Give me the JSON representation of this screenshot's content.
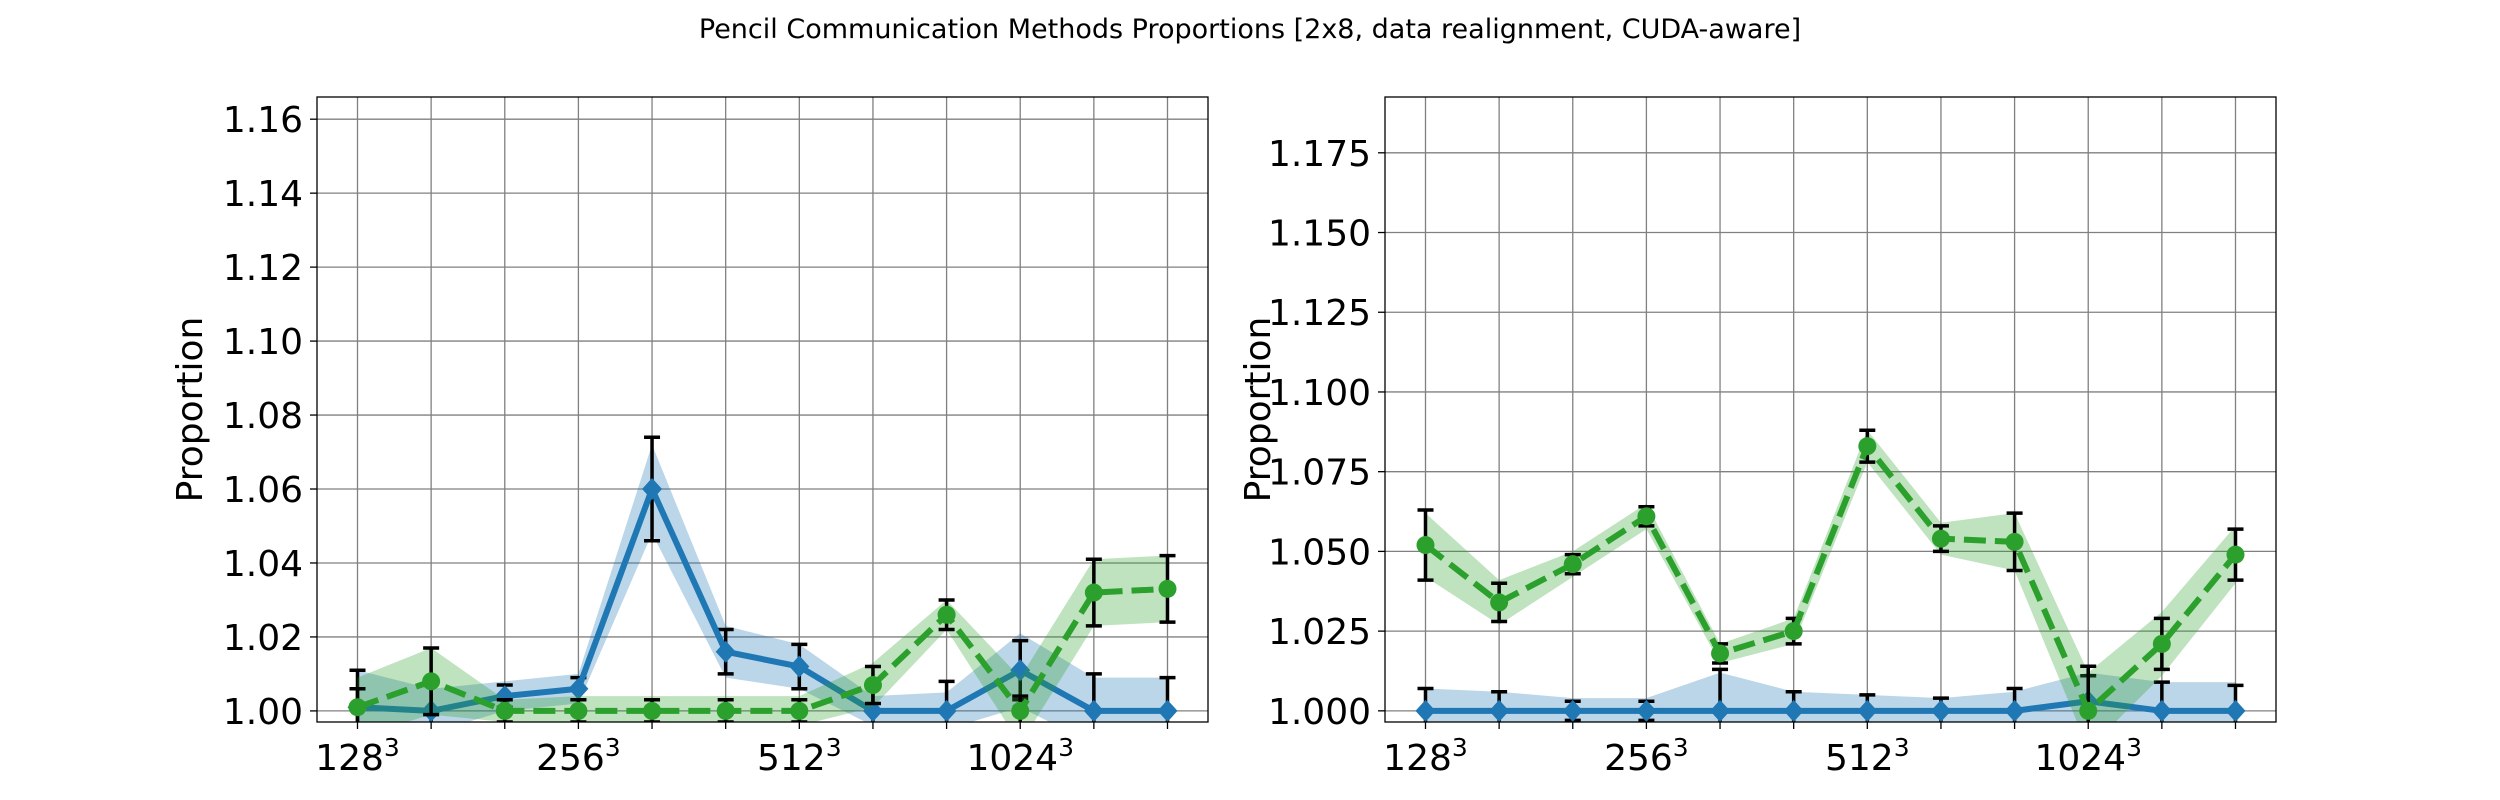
{
  "figure": {
    "title": "Pencil Communication Methods Proportions [2x8, data realignment, CUDA-aware]"
  },
  "colors": {
    "blue": "#1f77b4",
    "green": "#2ca02c",
    "errorbar": "#000000"
  },
  "chart_data": [
    {
      "type": "line",
      "title": "",
      "xlabel": "",
      "ylabel": "Proportion",
      "x_categories": [
        "128³",
        "",
        "",
        "256³",
        "",
        "",
        "512³",
        "",
        "",
        "1024³",
        "",
        ""
      ],
      "x_tick_labels": [
        {
          "index": 0,
          "base": "128",
          "exp": "3"
        },
        {
          "index": 3,
          "base": "256",
          "exp": "3"
        },
        {
          "index": 6,
          "base": "512",
          "exp": "3"
        },
        {
          "index": 9,
          "base": "1024",
          "exp": "3"
        }
      ],
      "ylim": [
        0.997,
        1.166
      ],
      "yticks": [
        1.0,
        1.02,
        1.04,
        1.06,
        1.08,
        1.1,
        1.12,
        1.14,
        1.16
      ],
      "ytick_labels": [
        "1.00",
        "1.02",
        "1.04",
        "1.06",
        "1.08",
        "1.10",
        "1.12",
        "1.14",
        "1.16"
      ],
      "grid": true,
      "series": [
        {
          "color": "blue",
          "style": "solid",
          "marker": "diamond",
          "values": [
            1.001,
            1.0,
            1.004,
            1.006,
            1.06,
            1.016,
            1.012,
            1.0,
            1.0,
            1.011,
            1.0,
            1.0
          ],
          "err": [
            0.01,
            0.008,
            0.003,
            0.003,
            0.014,
            0.006,
            0.006,
            0.007,
            0.008,
            0.008,
            0.01,
            0.009
          ],
          "band": [
            0.01,
            0.006,
            0.004,
            0.004,
            0.012,
            0.007,
            0.006,
            0.004,
            0.005,
            0.01,
            0.009,
            0.009
          ]
        },
        {
          "color": "green",
          "style": "dashed",
          "marker": "circle",
          "values": [
            1.001,
            1.008,
            1.0,
            1.0,
            1.0,
            1.0,
            1.0,
            1.007,
            1.026,
            1.0,
            1.032,
            1.033
          ],
          "err": [
            0.005,
            0.009,
            0.003,
            0.003,
            0.003,
            0.003,
            0.003,
            0.005,
            0.004,
            0.004,
            0.009,
            0.009
          ],
          "band": [
            0.008,
            0.009,
            0.003,
            0.004,
            0.004,
            0.004,
            0.004,
            0.006,
            0.004,
            0.009,
            0.009,
            0.009
          ]
        }
      ]
    },
    {
      "type": "line",
      "title": "",
      "xlabel": "",
      "ylabel": "Proportion",
      "x_categories": [
        "128³",
        "",
        "",
        "256³",
        "",
        "",
        "512³",
        "",
        "",
        "1024³",
        "",
        ""
      ],
      "x_tick_labels": [
        {
          "index": 0,
          "base": "128",
          "exp": "3"
        },
        {
          "index": 3,
          "base": "256",
          "exp": "3"
        },
        {
          "index": 6,
          "base": "512",
          "exp": "3"
        },
        {
          "index": 9,
          "base": "1024",
          "exp": "3"
        }
      ],
      "ylim": [
        0.9965,
        1.1925
      ],
      "yticks": [
        1.0,
        1.025,
        1.05,
        1.075,
        1.1,
        1.125,
        1.15,
        1.175
      ],
      "ytick_labels": [
        "1.000",
        "1.025",
        "1.050",
        "1.075",
        "1.100",
        "1.125",
        "1.150",
        "1.175"
      ],
      "grid": true,
      "series": [
        {
          "color": "blue",
          "style": "solid",
          "marker": "diamond",
          "values": [
            1.0,
            1.0,
            1.0,
            1.0,
            1.0,
            1.0,
            1.0,
            1.0,
            1.0,
            1.003,
            1.0,
            1.0
          ],
          "err": [
            0.007,
            0.006,
            0.003,
            0.003,
            0.013,
            0.006,
            0.005,
            0.004,
            0.007,
            0.008,
            0.009,
            0.008
          ],
          "band": [
            0.007,
            0.006,
            0.004,
            0.004,
            0.012,
            0.006,
            0.005,
            0.004,
            0.006,
            0.009,
            0.009,
            0.009
          ]
        },
        {
          "color": "green",
          "style": "dashed",
          "marker": "circle",
          "values": [
            1.052,
            1.034,
            1.046,
            1.061,
            1.018,
            1.025,
            1.083,
            1.054,
            1.053,
            1.0,
            1.021,
            1.049
          ],
          "err": [
            0.011,
            0.006,
            0.003,
            0.003,
            0.003,
            0.004,
            0.005,
            0.004,
            0.009,
            0.014,
            0.008,
            0.008
          ],
          "band": [
            0.01,
            0.007,
            0.004,
            0.004,
            0.003,
            0.004,
            0.005,
            0.005,
            0.009,
            0.012,
            0.01,
            0.009
          ]
        }
      ]
    }
  ]
}
